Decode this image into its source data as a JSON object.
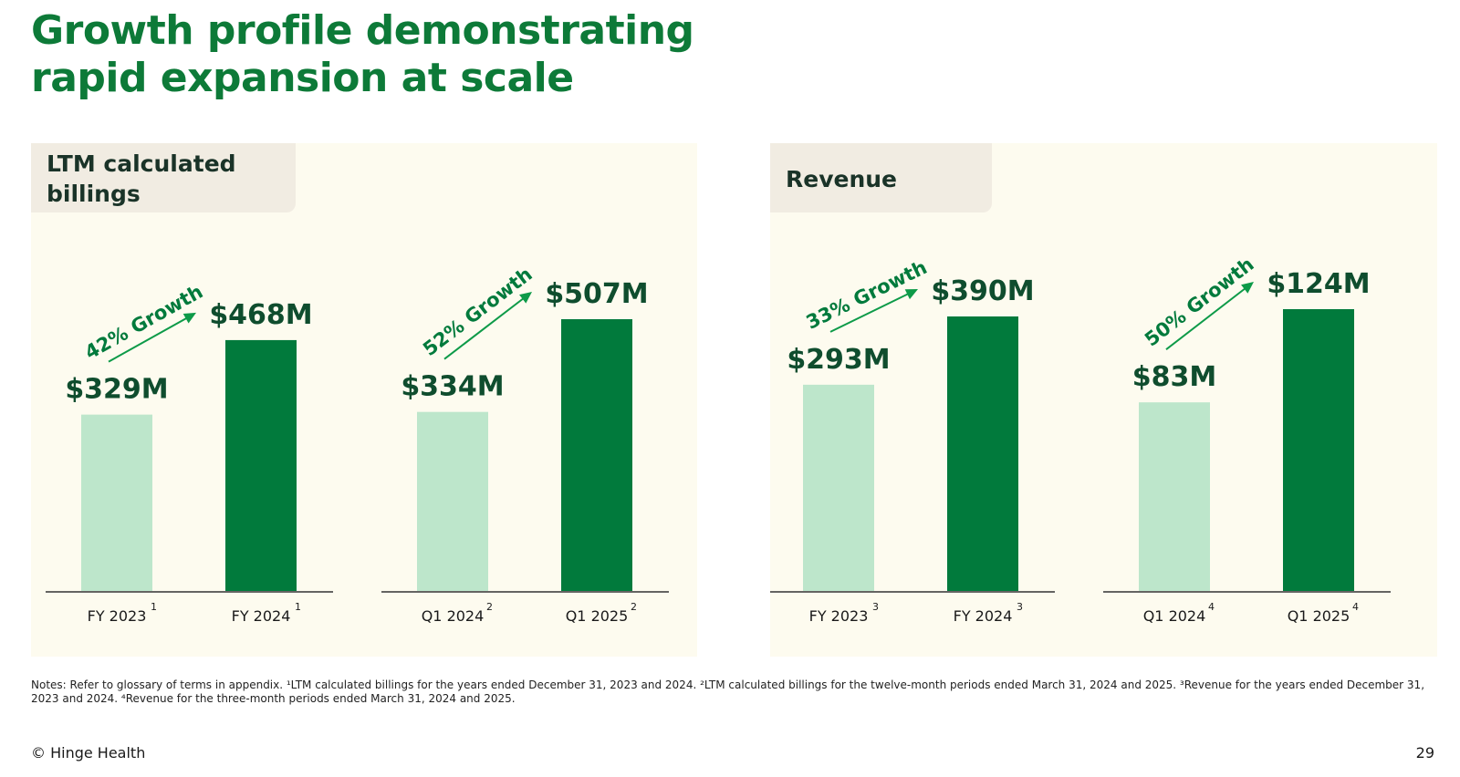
{
  "slide": {
    "title_line1": "Growth profile demonstrating",
    "title_line2": "rapid expansion at scale",
    "notes": "Notes: Refer to glossary of terms in appendix. ¹LTM calculated billings for the years ended December 31, 2023 and 2024. ²LTM calculated billings for the twelve-month periods ended March 31, 2024 and 2025. ³Revenue for the years ended December 31, 2023 and 2024. ⁴Revenue for the three-month periods ended March 31, 2024 and 2025.",
    "footer": "© Hinge Health",
    "page_number": "29"
  },
  "colors": {
    "title": "#0d7a38",
    "bar_light": "#bde6cb",
    "bar_dark": "#017a3c",
    "arrow": "#0d9a48",
    "label": "#0f4d2e",
    "panel_bg": "#fdfbef",
    "tab_bg": "#f1ece2"
  },
  "chart_data": [
    {
      "type": "bar",
      "title": "LTM calculated billings",
      "unit": "$M",
      "groups": [
        {
          "bars": [
            {
              "label": "FY 2023",
              "sup": "1",
              "value": 329,
              "value_label": "$329M",
              "shade": "light"
            },
            {
              "label": "FY 2024",
              "sup": "1",
              "value": 468,
              "value_label": "$468M",
              "shade": "dark"
            }
          ],
          "growth_label": "42% Growth"
        },
        {
          "bars": [
            {
              "label": "Q1 2024",
              "sup": "2",
              "value": 334,
              "value_label": "$334M",
              "shade": "light"
            },
            {
              "label": "Q1 2025",
              "sup": "2",
              "value": 507,
              "value_label": "$507M",
              "shade": "dark"
            }
          ],
          "growth_label": "52% Growth"
        }
      ]
    },
    {
      "type": "bar",
      "title": "Revenue",
      "unit": "$M",
      "groups": [
        {
          "bars": [
            {
              "label": "FY 2023",
              "sup": "3",
              "value": 293,
              "value_label": "$293M",
              "shade": "light"
            },
            {
              "label": "FY 2024",
              "sup": "3",
              "value": 390,
              "value_label": "$390M",
              "shade": "dark"
            }
          ],
          "growth_label": "33% Growth"
        },
        {
          "bars": [
            {
              "label": "Q1 2024",
              "sup": "4",
              "value": 83,
              "value_label": "$83M",
              "shade": "light"
            },
            {
              "label": "Q1 2025",
              "sup": "4",
              "value": 124,
              "value_label": "$124M",
              "shade": "dark"
            }
          ],
          "growth_label": "50% Growth"
        }
      ]
    }
  ]
}
